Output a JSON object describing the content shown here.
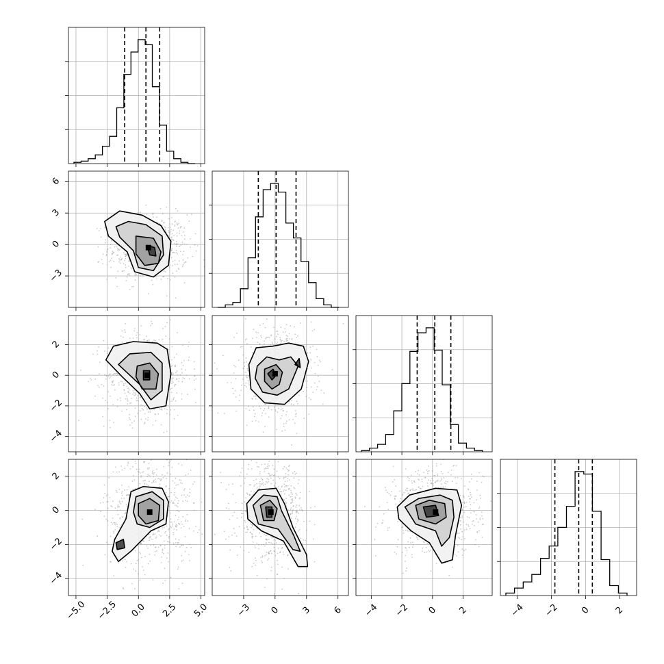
{
  "colors": {
    "frame": "#000000",
    "grid": "#b0b0b0",
    "contour": "#000000",
    "quantile": "#000000",
    "scatter": "#9a9a9a"
  },
  "chart_data": {
    "type": "corner",
    "grid": true,
    "n_params": 4,
    "params": [
      {
        "range": [
          -5.6,
          5.3
        ],
        "ticks": [
          -5.0,
          -2.5,
          0.0,
          2.5,
          5.0
        ],
        "tick_labels": [
          "−5.0",
          "−2.5",
          "0.0",
          "2.5",
          "5.0"
        ],
        "quantiles": [
          -1.1,
          0.6,
          1.7
        ],
        "hist_heights": [
          0.01,
          0.02,
          0.04,
          0.07,
          0.14,
          0.22,
          0.45,
          0.72,
          0.9,
          1.0,
          0.96,
          0.62,
          0.31,
          0.1,
          0.04,
          0.01,
          0.0
        ]
      },
      {
        "range": [
          -6.0,
          7.0
        ],
        "ticks": [
          -3,
          0,
          3,
          6
        ],
        "tick_labels": [
          "−3",
          "0",
          "3",
          "6"
        ],
        "quantiles": [
          -1.6,
          0.1,
          2.0
        ],
        "hist_heights": [
          0.0,
          0.02,
          0.04,
          0.15,
          0.4,
          0.73,
          0.95,
          1.0,
          0.93,
          0.68,
          0.56,
          0.37,
          0.2,
          0.07,
          0.02,
          0.0
        ]
      },
      {
        "range": [
          -5.0,
          3.9
        ],
        "ticks": [
          -4,
          -2,
          0,
          2
        ],
        "tick_labels": [
          "−4",
          "−2",
          "0",
          "2"
        ],
        "quantiles": [
          -1.0,
          0.15,
          1.2
        ],
        "hist_heights": [
          0.01,
          0.03,
          0.06,
          0.14,
          0.33,
          0.55,
          0.81,
          0.96,
          1.0,
          0.82,
          0.54,
          0.22,
          0.07,
          0.03,
          0.01
        ]
      },
      {
        "range": [
          -5.0,
          3.0
        ],
        "ticks": [
          -4,
          -2,
          0,
          2
        ],
        "tick_labels": [
          "−4",
          "−2",
          "0",
          "2"
        ],
        "quantiles": [
          -1.8,
          -0.4,
          0.4
        ],
        "hist_heights": [
          0.02,
          0.06,
          0.11,
          0.17,
          0.3,
          0.4,
          0.55,
          0.72,
          1.0,
          0.98,
          0.68,
          0.29,
          0.08,
          0.02
        ]
      }
    ],
    "pairs": [
      {
        "row": 1,
        "col": 0,
        "center": [
          0.8,
          -0.3
        ],
        "spread": [
          1.6,
          1.6
        ],
        "contours": [
          [
            [
              -2.7,
              2.2
            ],
            [
              -1.5,
              3.2
            ],
            [
              0.3,
              2.8
            ],
            [
              1.8,
              1.8
            ],
            [
              2.6,
              0.3
            ],
            [
              2.4,
              -2.0
            ],
            [
              1.2,
              -3.1
            ],
            [
              -0.3,
              -2.6
            ],
            [
              -0.9,
              -0.7
            ],
            [
              -2.4,
              0.8
            ]
          ],
          [
            [
              -1.8,
              1.7
            ],
            [
              -0.8,
              2.2
            ],
            [
              0.6,
              1.9
            ],
            [
              1.9,
              0.8
            ],
            [
              2.0,
              -1.0
            ],
            [
              1.2,
              -2.5
            ],
            [
              0.0,
              -2.2
            ],
            [
              -0.4,
              -0.6
            ],
            [
              -1.5,
              0.7
            ]
          ],
          [
            [
              -0.2,
              0.8
            ],
            [
              1.2,
              0.6
            ],
            [
              1.8,
              -0.7
            ],
            [
              1.6,
              -1.8
            ],
            [
              0.5,
              -2.0
            ],
            [
              -0.2,
              -0.9
            ]
          ],
          [
            [
              0.7,
              -0.1
            ],
            [
              1.3,
              -0.3
            ],
            [
              1.4,
              -1.1
            ],
            [
              0.9,
              -1.0
            ]
          ]
        ]
      },
      {
        "row": 2,
        "col": 0,
        "center": [
          0.7,
          0.0
        ],
        "spread": [
          1.7,
          1.4
        ],
        "contours": [
          [
            [
              -2.6,
              1.0
            ],
            [
              -2.0,
              1.9
            ],
            [
              -0.4,
              2.2
            ],
            [
              1.5,
              2.1
            ],
            [
              2.3,
              1.7
            ],
            [
              2.6,
              0.1
            ],
            [
              2.2,
              -2.0
            ],
            [
              0.9,
              -2.2
            ],
            [
              0.1,
              -1.2
            ],
            [
              -1.3,
              -0.1
            ]
          ],
          [
            [
              -1.6,
              0.7
            ],
            [
              -0.7,
              1.4
            ],
            [
              1.0,
              1.5
            ],
            [
              1.9,
              0.8
            ],
            [
              1.9,
              -1.0
            ],
            [
              1.0,
              -1.6
            ],
            [
              0.1,
              -0.6
            ]
          ],
          [
            [
              -0.1,
              0.6
            ],
            [
              0.9,
              0.8
            ],
            [
              1.6,
              0.1
            ],
            [
              1.4,
              -0.9
            ],
            [
              0.3,
              -0.9
            ],
            [
              -0.2,
              -0.1
            ]
          ],
          [
            [
              0.4,
              0.3
            ],
            [
              0.9,
              0.3
            ],
            [
              0.9,
              -0.3
            ],
            [
              0.4,
              -0.3
            ]
          ]
        ]
      },
      {
        "row": 3,
        "col": 0,
        "center": [
          0.9,
          -0.1
        ],
        "spread": [
          1.8,
          1.7
        ],
        "contours": [
          [
            [
              -0.6,
              1.1
            ],
            [
              0.4,
              1.4
            ],
            [
              1.9,
              1.3
            ],
            [
              2.4,
              0.5
            ],
            [
              2.2,
              -0.8
            ],
            [
              1.0,
              -1.2
            ],
            [
              -0.6,
              -2.4
            ],
            [
              -1.6,
              -3.0
            ],
            [
              -2.1,
              -2.4
            ],
            [
              -1.9,
              -1.7
            ],
            [
              -1.0,
              -0.5
            ]
          ],
          [
            [
              -0.2,
              0.8
            ],
            [
              1.1,
              1.1
            ],
            [
              2.0,
              0.6
            ],
            [
              2.0,
              -0.5
            ],
            [
              0.9,
              -1.0
            ],
            [
              -0.1,
              -0.8
            ],
            [
              -0.4,
              -0.1
            ]
          ],
          [
            [
              0.0,
              0.4
            ],
            [
              0.9,
              0.7
            ],
            [
              1.7,
              0.3
            ],
            [
              1.6,
              -0.6
            ],
            [
              0.6,
              -0.8
            ],
            [
              0.0,
              -0.3
            ]
          ],
          [
            [
              -1.8,
              -1.9
            ],
            [
              -1.2,
              -1.7
            ],
            [
              -1.1,
              -2.2
            ],
            [
              -1.7,
              -2.3
            ]
          ]
        ]
      },
      {
        "row": 2,
        "col": 1,
        "center": [
          0.0,
          0.1
        ],
        "spread": [
          1.8,
          1.5
        ],
        "contours": [
          [
            [
              -2.5,
              0.7
            ],
            [
              -1.8,
              1.8
            ],
            [
              -0.2,
              1.9
            ],
            [
              1.3,
              2.1
            ],
            [
              2.7,
              1.9
            ],
            [
              3.2,
              0.9
            ],
            [
              2.5,
              -0.9
            ],
            [
              0.9,
              -1.9
            ],
            [
              -1.0,
              -1.8
            ],
            [
              -2.3,
              -0.9
            ]
          ],
          [
            [
              -1.7,
              0.6
            ],
            [
              -0.8,
              1.2
            ],
            [
              0.4,
              1.0
            ],
            [
              1.5,
              1.2
            ],
            [
              2.2,
              0.6
            ],
            [
              1.3,
              -0.9
            ],
            [
              0.2,
              -1.3
            ],
            [
              -1.2,
              -1.1
            ],
            [
              -1.9,
              -0.2
            ]
          ],
          [
            [
              -1.0,
              0.4
            ],
            [
              0.1,
              0.7
            ],
            [
              0.7,
              0.2
            ],
            [
              0.4,
              -0.6
            ],
            [
              -0.3,
              -0.9
            ],
            [
              -1.0,
              -0.4
            ]
          ],
          [
            [
              -0.7,
              0.1
            ],
            [
              -0.2,
              0.4
            ],
            [
              0.1,
              0.0
            ],
            [
              -0.3,
              -0.3
            ]
          ],
          [
            [
              1.9,
              0.7
            ],
            [
              2.3,
              1.1
            ],
            [
              2.4,
              0.5
            ]
          ]
        ]
      },
      {
        "row": 3,
        "col": 1,
        "center": [
          -0.4,
          -0.1
        ],
        "spread": [
          1.6,
          1.4
        ],
        "contours": [
          [
            [
              -2.7,
              0.4
            ],
            [
              -1.6,
              1.2
            ],
            [
              0.1,
              1.3
            ],
            [
              0.9,
              0.4
            ],
            [
              1.7,
              -1.0
            ],
            [
              3.0,
              -2.6
            ],
            [
              3.1,
              -3.3
            ],
            [
              2.2,
              -3.3
            ],
            [
              0.8,
              -1.8
            ],
            [
              -1.3,
              -1.2
            ],
            [
              -2.6,
              -0.5
            ]
          ],
          [
            [
              -2.1,
              0.3
            ],
            [
              -1.1,
              0.9
            ],
            [
              0.2,
              0.8
            ],
            [
              0.6,
              0.0
            ],
            [
              1.8,
              -1.5
            ],
            [
              2.4,
              -2.4
            ],
            [
              1.7,
              -2.3
            ],
            [
              0.3,
              -1.1
            ],
            [
              -1.6,
              -0.8
            ]
          ],
          [
            [
              -1.4,
              0.3
            ],
            [
              -0.5,
              0.6
            ],
            [
              0.2,
              0.1
            ],
            [
              -0.1,
              -0.6
            ],
            [
              -1.1,
              -0.6
            ]
          ],
          [
            [
              -0.9,
              0.2
            ],
            [
              -0.3,
              0.2
            ],
            [
              -0.3,
              -0.4
            ],
            [
              -0.8,
              -0.4
            ]
          ]
        ]
      },
      {
        "row": 3,
        "col": 2,
        "center": [
          0.2,
          -0.1
        ],
        "spread": [
          1.5,
          1.3
        ],
        "contours": [
          [
            [
              -2.3,
              0.2
            ],
            [
              -1.5,
              0.9
            ],
            [
              0.2,
              1.3
            ],
            [
              1.6,
              1.2
            ],
            [
              1.9,
              0.3
            ],
            [
              1.5,
              -1.5
            ],
            [
              1.3,
              -2.9
            ],
            [
              0.6,
              -3.1
            ],
            [
              -0.2,
              -1.9
            ],
            [
              -1.4,
              -1.2
            ],
            [
              -2.2,
              -0.5
            ]
          ],
          [
            [
              -1.8,
              0.2
            ],
            [
              -0.9,
              0.7
            ],
            [
              0.5,
              0.9
            ],
            [
              1.3,
              0.6
            ],
            [
              1.4,
              -0.4
            ],
            [
              1.1,
              -1.6
            ],
            [
              0.6,
              -2.1
            ],
            [
              0.2,
              -1.2
            ],
            [
              -1.1,
              -0.8
            ]
          ],
          [
            [
              -1.1,
              0.3
            ],
            [
              -0.2,
              0.6
            ],
            [
              0.8,
              0.4
            ],
            [
              0.9,
              -0.4
            ],
            [
              0.2,
              -0.8
            ],
            [
              -0.9,
              -0.5
            ]
          ],
          [
            [
              -0.6,
              0.2
            ],
            [
              0.2,
              0.3
            ],
            [
              0.4,
              -0.3
            ],
            [
              -0.4,
              -0.4
            ]
          ]
        ]
      }
    ]
  }
}
